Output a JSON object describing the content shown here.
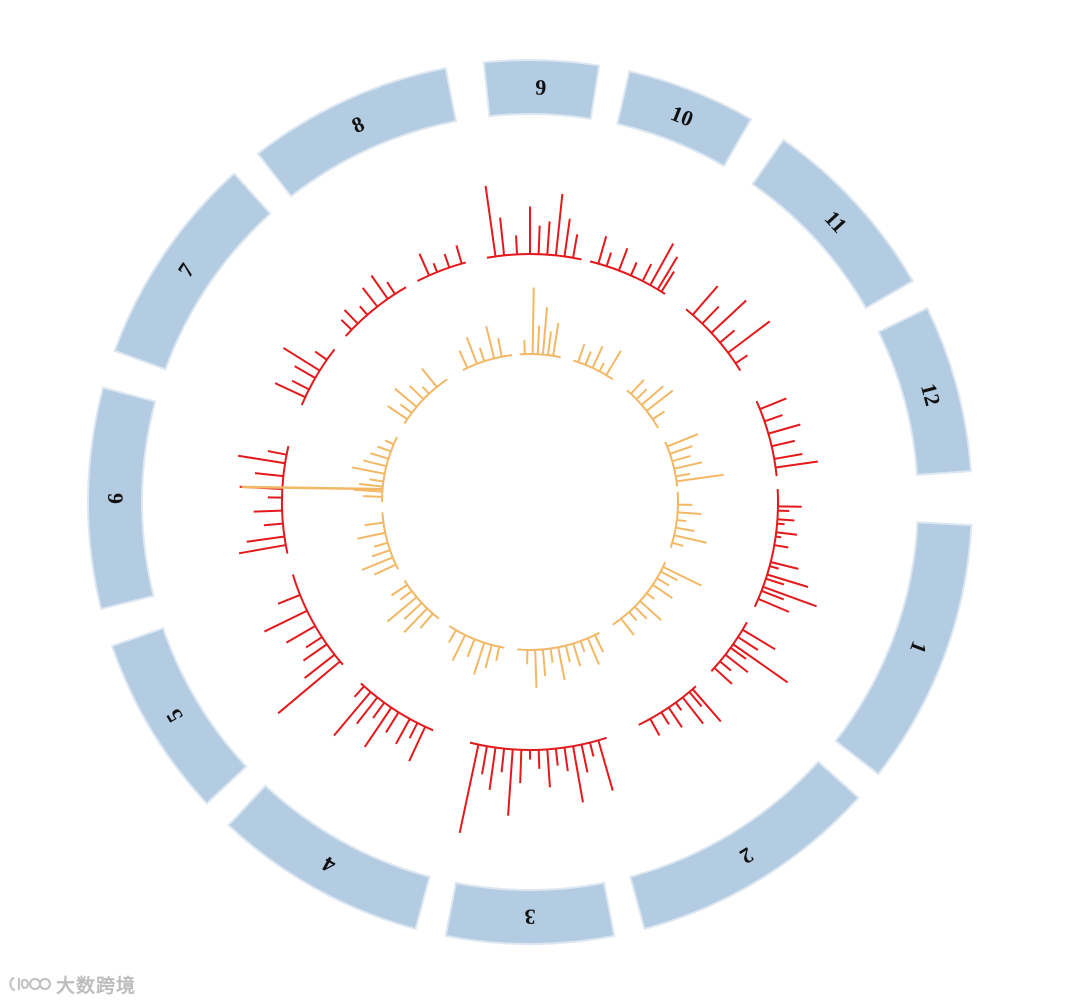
{
  "colors": {
    "ideogram_fill": "#b4cce2",
    "ideogram_stroke": "#dde7f1",
    "label": "#111111",
    "outer_track": "#e3191c",
    "inner_track": "#f2b866",
    "watermark": "#bdbdbd"
  },
  "watermark": {
    "text": "大数跨境",
    "logo_icon": "icoo-logo-icon"
  },
  "chart_data": {
    "type": "circos",
    "title": "",
    "segments": [
      {
        "label": "1",
        "start_deg": 3,
        "end_deg": 38
      },
      {
        "label": "2",
        "start_deg": 42,
        "end_deg": 75
      },
      {
        "label": "3",
        "start_deg": 79,
        "end_deg": 101
      },
      {
        "label": "4",
        "start_deg": 105,
        "end_deg": 133
      },
      {
        "label": "5",
        "start_deg": 137,
        "end_deg": 161
      },
      {
        "label": "6",
        "start_deg": 166,
        "end_deg": 195
      },
      {
        "label": "7",
        "start_deg": 200,
        "end_deg": 228
      },
      {
        "label": "8",
        "start_deg": 232,
        "end_deg": 259
      },
      {
        "label": "9",
        "start_deg": 264,
        "end_deg": 279
      },
      {
        "label": "10",
        "start_deg": 283,
        "end_deg": 300
      },
      {
        "label": "11",
        "start_deg": 305,
        "end_deg": 330
      },
      {
        "label": "12",
        "start_deg": 334,
        "end_deg": 356
      }
    ],
    "outer_track": {
      "name": "",
      "arcs": [
        {
          "start_deg": -3,
          "end_deg": 25
        },
        {
          "start_deg": 29,
          "end_deg": 43
        },
        {
          "start_deg": 48,
          "end_deg": 64
        },
        {
          "start_deg": 72,
          "end_deg": 104
        },
        {
          "start_deg": 113,
          "end_deg": 133
        },
        {
          "start_deg": 139,
          "end_deg": 163
        },
        {
          "start_deg": 168,
          "end_deg": 193
        },
        {
          "start_deg": 203,
          "end_deg": 218
        },
        {
          "start_deg": 222,
          "end_deg": 240
        },
        {
          "start_deg": 243,
          "end_deg": 255
        },
        {
          "start_deg": 260,
          "end_deg": 282
        },
        {
          "start_deg": 284,
          "end_deg": 303
        },
        {
          "start_deg": 309,
          "end_deg": 328
        },
        {
          "start_deg": 336,
          "end_deg": 354
        }
      ],
      "values": [
        [
          1,
          25
        ],
        [
          2,
          12
        ],
        [
          4,
          18
        ],
        [
          5,
          8
        ],
        [
          7,
          22
        ],
        [
          8,
          6
        ],
        [
          10,
          15
        ],
        [
          14,
          30
        ],
        [
          15,
          10
        ],
        [
          17,
          45
        ],
        [
          18,
          20
        ],
        [
          20,
          60
        ],
        [
          21,
          25
        ],
        [
          23,
          35
        ],
        [
          31,
          40
        ],
        [
          33,
          25
        ],
        [
          35,
          70
        ],
        [
          36,
          20
        ],
        [
          38,
          30
        ],
        [
          40,
          15
        ],
        [
          42,
          25
        ],
        [
          49,
          45
        ],
        [
          50,
          20
        ],
        [
          52,
          35
        ],
        [
          54,
          10
        ],
        [
          56,
          25
        ],
        [
          58,
          15
        ],
        [
          61,
          20
        ],
        [
          74,
          55
        ],
        [
          76,
          15
        ],
        [
          78,
          30
        ],
        [
          80,
          60
        ],
        [
          82,
          25
        ],
        [
          84,
          18
        ],
        [
          86,
          40
        ],
        [
          88,
          20
        ],
        [
          90,
          10
        ],
        [
          92,
          35
        ],
        [
          94,
          70
        ],
        [
          96,
          25
        ],
        [
          98,
          45
        ],
        [
          100,
          30
        ],
        [
          102,
          95
        ],
        [
          115,
          40
        ],
        [
          117,
          18
        ],
        [
          119,
          30
        ],
        [
          122,
          25
        ],
        [
          124,
          50
        ],
        [
          126,
          20
        ],
        [
          128,
          35
        ],
        [
          130,
          60
        ],
        [
          132,
          15
        ],
        [
          140,
          85
        ],
        [
          142,
          40
        ],
        [
          145,
          30
        ],
        [
          147,
          20
        ],
        [
          150,
          35
        ],
        [
          154,
          50
        ],
        [
          158,
          25
        ],
        [
          170,
          50
        ],
        [
          172,
          40
        ],
        [
          175,
          20
        ],
        [
          178,
          30
        ],
        [
          181,
          15
        ],
        [
          183,
          45
        ],
        [
          186,
          30
        ],
        [
          189,
          50
        ],
        [
          191,
          20
        ],
        [
          205,
          35
        ],
        [
          207,
          20
        ],
        [
          210,
          25
        ],
        [
          212,
          45
        ],
        [
          215,
          15
        ],
        [
          224,
          15
        ],
        [
          226,
          20
        ],
        [
          229,
          12
        ],
        [
          232,
          25
        ],
        [
          235,
          30
        ],
        [
          237,
          15
        ],
        [
          246,
          25
        ],
        [
          248,
          10
        ],
        [
          251,
          15
        ],
        [
          254,
          20
        ],
        [
          262,
          75
        ],
        [
          264,
          40
        ],
        [
          267,
          20
        ],
        [
          270,
          50
        ],
        [
          272,
          30
        ],
        [
          274,
          35
        ],
        [
          276,
          65
        ],
        [
          278,
          40
        ],
        [
          280,
          25
        ],
        [
          286,
          30
        ],
        [
          288,
          15
        ],
        [
          291,
          25
        ],
        [
          294,
          15
        ],
        [
          297,
          20
        ],
        [
          299,
          50
        ],
        [
          301,
          40
        ],
        [
          302,
          25
        ],
        [
          311,
          40
        ],
        [
          314,
          25
        ],
        [
          317,
          50
        ],
        [
          320,
          20
        ],
        [
          323,
          55
        ],
        [
          326,
          15
        ],
        [
          338,
          30
        ],
        [
          341,
          20
        ],
        [
          344,
          35
        ],
        [
          347,
          25
        ],
        [
          350,
          30
        ],
        [
          352,
          45
        ]
      ]
    },
    "inner_track": {
      "name": "",
      "arcs": [
        {
          "start_deg": -4,
          "end_deg": 18
        },
        {
          "start_deg": 24,
          "end_deg": 56
        },
        {
          "start_deg": 62,
          "end_deg": 95
        },
        {
          "start_deg": 100,
          "end_deg": 123
        },
        {
          "start_deg": 128,
          "end_deg": 148
        },
        {
          "start_deg": 153,
          "end_deg": 176
        },
        {
          "start_deg": 180,
          "end_deg": 206
        },
        {
          "start_deg": 212,
          "end_deg": 236
        },
        {
          "start_deg": 243,
          "end_deg": 263
        },
        {
          "start_deg": 266,
          "end_deg": 282
        },
        {
          "start_deg": 287,
          "end_deg": 304
        },
        {
          "start_deg": 311,
          "end_deg": 330
        },
        {
          "start_deg": 336,
          "end_deg": 354
        }
      ],
      "values": [
        [
          1,
          15
        ],
        [
          4,
          25
        ],
        [
          7,
          10
        ],
        [
          10,
          20
        ],
        [
          13,
          35
        ],
        [
          16,
          12
        ],
        [
          26,
          45
        ],
        [
          28,
          20
        ],
        [
          31,
          15
        ],
        [
          34,
          25
        ],
        [
          38,
          10
        ],
        [
          42,
          30
        ],
        [
          45,
          18
        ],
        [
          48,
          12
        ],
        [
          52,
          22
        ],
        [
          64,
          20
        ],
        [
          67,
          30
        ],
        [
          70,
          12
        ],
        [
          73,
          25
        ],
        [
          76,
          18
        ],
        [
          79,
          35
        ],
        [
          82,
          15
        ],
        [
          85,
          28
        ],
        [
          88,
          40
        ],
        [
          91,
          15
        ],
        [
          102,
          15
        ],
        [
          105,
          25
        ],
        [
          108,
          35
        ],
        [
          112,
          20
        ],
        [
          116,
          30
        ],
        [
          120,
          15
        ],
        [
          131,
          20
        ],
        [
          134,
          35
        ],
        [
          137,
          25
        ],
        [
          140,
          40
        ],
        [
          143,
          15
        ],
        [
          146,
          20
        ],
        [
          155,
          25
        ],
        [
          158,
          35
        ],
        [
          161,
          20
        ],
        [
          164,
          15
        ],
        [
          168,
          30
        ],
        [
          172,
          20
        ],
        [
          182,
          20
        ],
        [
          184,
          30
        ],
        [
          186,
          25
        ],
        [
          188,
          15
        ],
        [
          191,
          35
        ],
        [
          194,
          25
        ],
        [
          197,
          20
        ],
        [
          200,
          15
        ],
        [
          203,
          10
        ],
        [
          214,
          25
        ],
        [
          217,
          15
        ],
        [
          220,
          30
        ],
        [
          224,
          20
        ],
        [
          227,
          10
        ],
        [
          231,
          25
        ],
        [
          245,
          20
        ],
        [
          249,
          30
        ],
        [
          252,
          15
        ],
        [
          256,
          35
        ],
        [
          259,
          20
        ],
        [
          268,
          15
        ],
        [
          271,
          70
        ],
        [
          273,
          30
        ],
        [
          275,
          50
        ],
        [
          277,
          25
        ],
        [
          279,
          35
        ],
        [
          289,
          20
        ],
        [
          292,
          15
        ],
        [
          295,
          25
        ],
        [
          298,
          10
        ],
        [
          301,
          30
        ],
        [
          313,
          20
        ],
        [
          316,
          15
        ],
        [
          319,
          30
        ],
        [
          322,
          35
        ],
        [
          326,
          15
        ],
        [
          338,
          35
        ],
        [
          341,
          25
        ],
        [
          344,
          20
        ],
        [
          347,
          30
        ],
        [
          350,
          15
        ],
        [
          352,
          50
        ]
      ]
    },
    "spike": {
      "name": "",
      "angle_deg": 185,
      "outer_radius_value": 148
    }
  }
}
